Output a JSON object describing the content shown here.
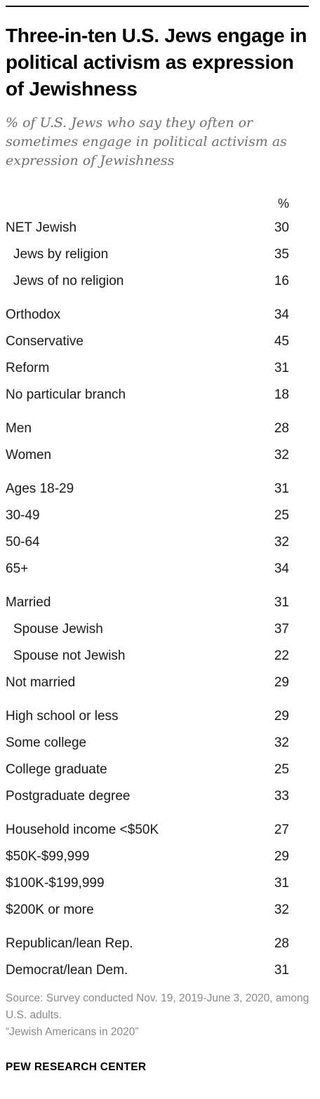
{
  "title": "Three-in-ten U.S. Jews engage in political activism as expression of Jewishness",
  "subtitle": "% of U.S. Jews who say they often or sometimes engage in political activism as expression of Jewishness",
  "column_header": "%",
  "source": "Source: Survey conducted Nov. 19, 2019-June 3, 2020, among U.S. adults.",
  "report": "“Jewish Americans in 2020”",
  "logo": "PEW RESEARCH CENTER",
  "chart_data": {
    "type": "table",
    "columns": [
      "%"
    ],
    "rows": [
      {
        "label": "NET Jewish",
        "value": 30
      },
      {
        "label": "Jews by religion",
        "value": 35
      },
      {
        "label": "Jews of no religion",
        "value": 16
      },
      {
        "label": "Orthodox",
        "value": 34
      },
      {
        "label": "Conservative",
        "value": 45
      },
      {
        "label": "Reform",
        "value": 31
      },
      {
        "label": "No particular branch",
        "value": 18
      },
      {
        "label": "Men",
        "value": 28
      },
      {
        "label": "Women",
        "value": 32
      },
      {
        "label": "Ages 18-29",
        "value": 31
      },
      {
        "label": "30-49",
        "value": 25
      },
      {
        "label": "50-64",
        "value": 32
      },
      {
        "label": "65+",
        "value": 34
      },
      {
        "label": "Married",
        "value": 31
      },
      {
        "label": "Spouse Jewish",
        "value": 37
      },
      {
        "label": "Spouse not Jewish",
        "value": 22
      },
      {
        "label": "Not married",
        "value": 29
      },
      {
        "label": "High school or less",
        "value": 29
      },
      {
        "label": "Some college",
        "value": 32
      },
      {
        "label": "College graduate",
        "value": 25
      },
      {
        "label": "Postgraduate degree",
        "value": 33
      },
      {
        "label": "Household income <$50K",
        "value": 27
      },
      {
        "label": "$50K-$99,999",
        "value": 29
      },
      {
        "label": "$100K-$199,999",
        "value": 31
      },
      {
        "label": "$200K or more",
        "value": 32
      },
      {
        "label": "Republican/lean Rep.",
        "value": 28
      },
      {
        "label": "Democrat/lean Dem.",
        "value": 31
      }
    ]
  }
}
